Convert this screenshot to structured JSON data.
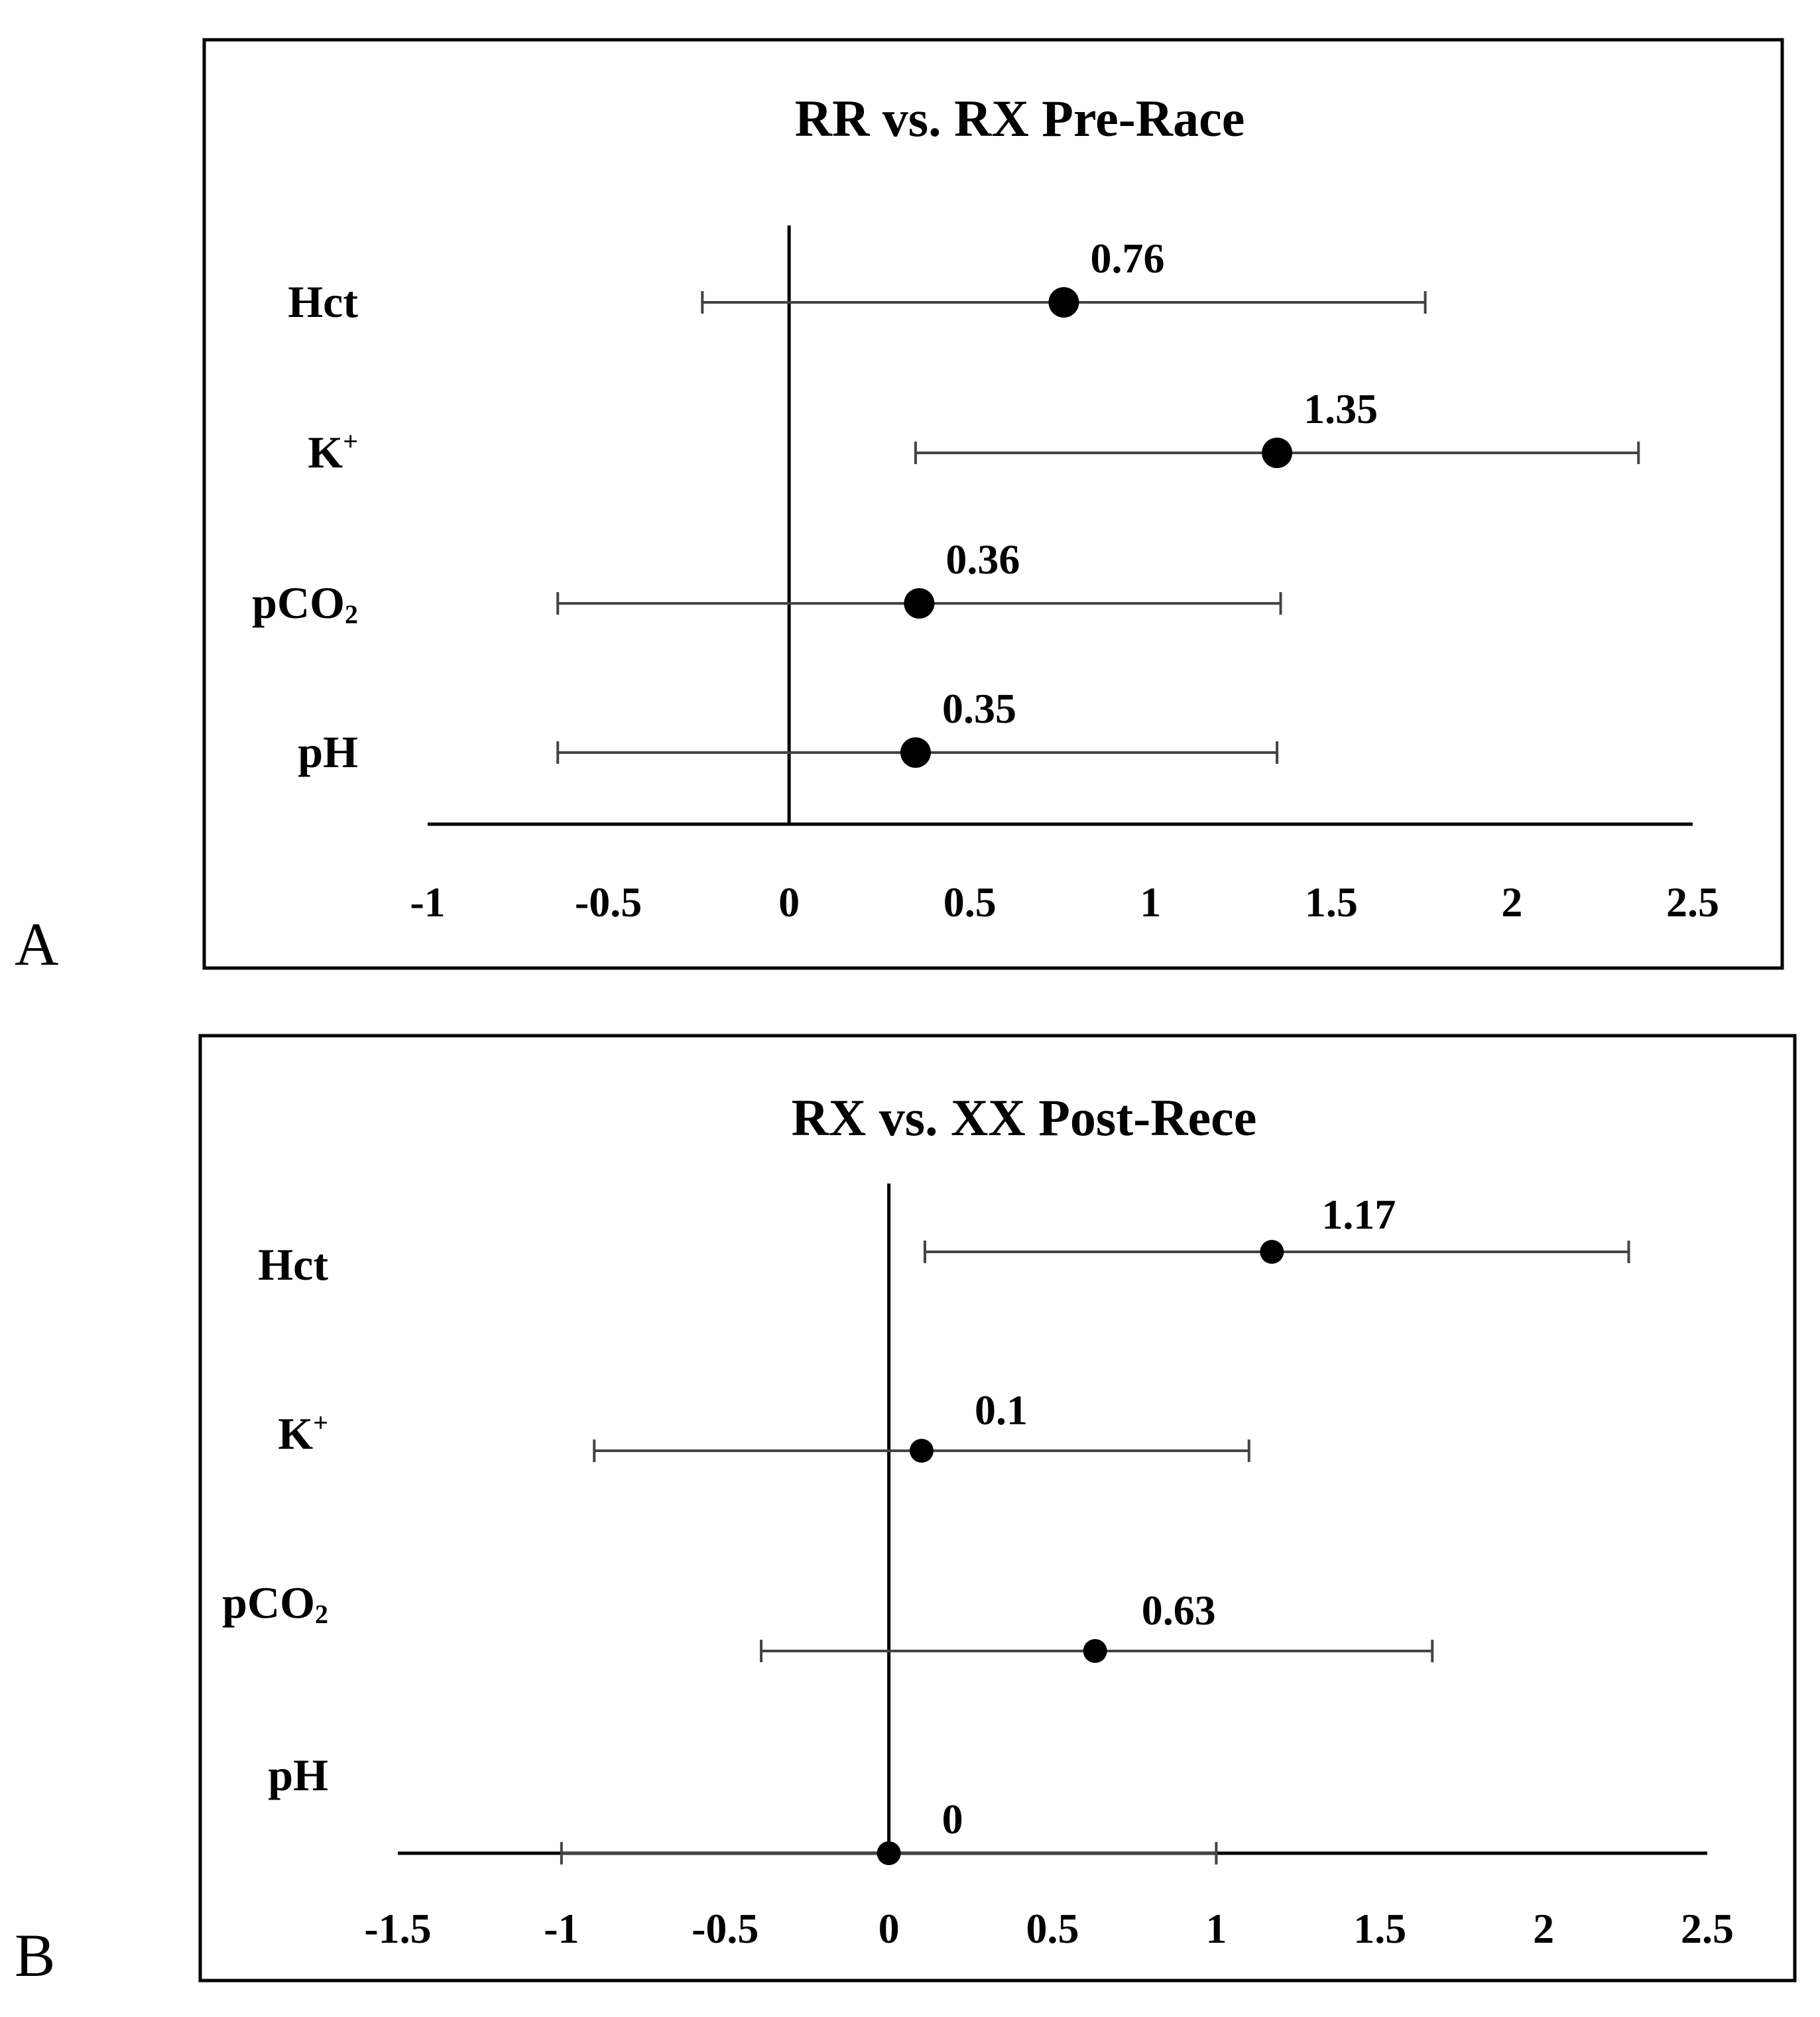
{
  "chart_data": [
    {
      "panel": "A",
      "type": "forest",
      "title": "RR vs. RX Pre-Race",
      "xlim": [
        -1,
        2.5
      ],
      "xticks": [
        -1,
        -0.5,
        0,
        0.5,
        1,
        1.5,
        2,
        2.5
      ],
      "xtick_labels": [
        "-1",
        "-0.5",
        "0",
        "0.5",
        "1",
        "1.5",
        "2",
        "2.5"
      ],
      "rows": [
        {
          "label": "Hct",
          "sup": "",
          "sub": "",
          "value": 0.76,
          "value_label": "0.76",
          "ci": [
            -0.24,
            1.76
          ]
        },
        {
          "label": "K",
          "sup": "+",
          "sub": "",
          "value": 1.35,
          "value_label": "1.35",
          "ci": [
            0.35,
            2.35
          ]
        },
        {
          "label": "pCO",
          "sup": "",
          "sub": "2",
          "value": 0.36,
          "value_label": "0.36",
          "ci": [
            -0.64,
            1.36
          ]
        },
        {
          "label": "pH",
          "sup": "",
          "sub": "",
          "value": 0.35,
          "value_label": "0.35",
          "ci": [
            -0.64,
            1.35
          ]
        }
      ]
    },
    {
      "panel": "B",
      "type": "forest",
      "title": "RX vs. XX Post-Rece",
      "xlim": [
        -1.5,
        2.5
      ],
      "xticks": [
        -1.5,
        -1,
        -0.5,
        0,
        0.5,
        1,
        1.5,
        2,
        2.5
      ],
      "xtick_labels": [
        "-1.5",
        "-1",
        "-0.5",
        "0",
        "0.5",
        "1",
        "1.5",
        "2",
        "2.5"
      ],
      "rows": [
        {
          "label": "Hct",
          "sup": "",
          "sub": "",
          "value": 1.17,
          "value_label": "1.17",
          "ci": [
            0.11,
            2.26
          ]
        },
        {
          "label": "K",
          "sup": "+",
          "sub": "",
          "value": 0.1,
          "value_label": "0.1",
          "ci": [
            -0.9,
            1.1
          ]
        },
        {
          "label": "pCO",
          "sup": "",
          "sub": "2",
          "value": 0.63,
          "value_label": "0.63",
          "ci": [
            -0.39,
            1.66
          ]
        },
        {
          "label": "pH",
          "sup": "",
          "sub": "",
          "value": 0,
          "value_label": "0",
          "ci": [
            -1,
            1
          ]
        }
      ]
    }
  ]
}
